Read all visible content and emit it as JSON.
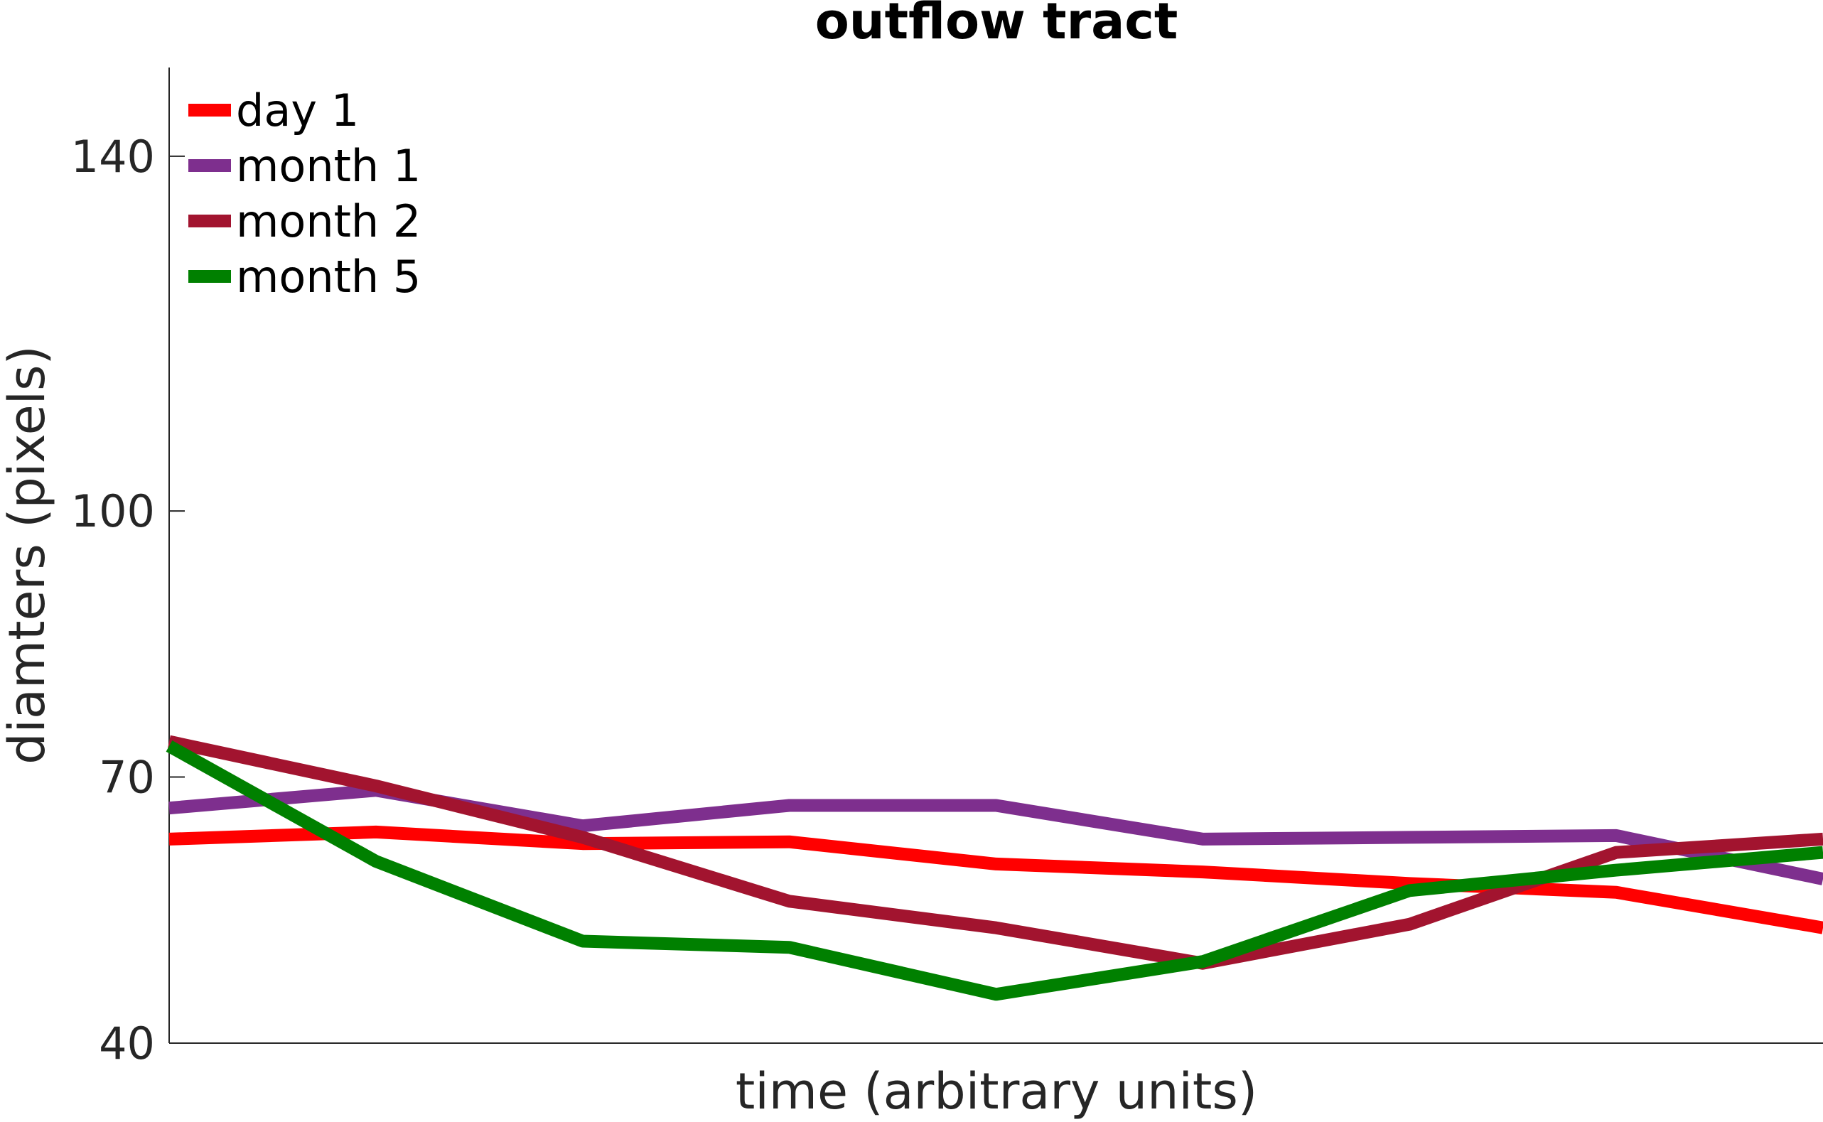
{
  "chart_data": {
    "type": "line",
    "title": "outflow tract",
    "xlabel": "time (arbitrary units)",
    "ylabel": "diamters (pixels)",
    "x": [
      1,
      2,
      3,
      4,
      5,
      6,
      7,
      8,
      9
    ],
    "xlim": [
      1,
      9
    ],
    "ylim": [
      40,
      150
    ],
    "yticks": [
      40,
      70,
      100,
      140
    ],
    "xticks_shown": false,
    "grid": false,
    "legend_position": "top-left",
    "series": [
      {
        "name": "day 1",
        "color": "#ff0000",
        "values": [
          63.0,
          63.8,
          62.5,
          62.7,
          60.2,
          59.3,
          58.0,
          57.0,
          53.0
        ]
      },
      {
        "name": "month 1",
        "color": "#7e2f8e",
        "values": [
          66.5,
          68.5,
          64.5,
          66.8,
          66.8,
          63.0,
          63.2,
          63.4,
          58.5
        ]
      },
      {
        "name": "month 2",
        "color": "#a2142f",
        "values": [
          74.0,
          69.0,
          63.2,
          56.0,
          53.0,
          49.0,
          53.4,
          61.5,
          63.0
        ]
      },
      {
        "name": "month 5",
        "color": "#008000",
        "values": [
          73.5,
          60.5,
          51.5,
          50.8,
          45.5,
          49.2,
          57.2,
          59.5,
          61.5
        ]
      }
    ]
  }
}
